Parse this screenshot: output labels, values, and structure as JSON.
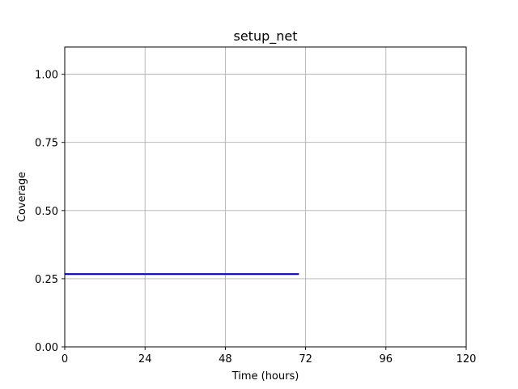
{
  "chart_data": {
    "type": "line",
    "title": "setup_net",
    "xlabel": "Time (hours)",
    "ylabel": "Coverage",
    "xlim": [
      0,
      120
    ],
    "ylim": [
      0,
      1.1
    ],
    "xticks": [
      0,
      24,
      48,
      72,
      96,
      120
    ],
    "xtick_labels": [
      "0",
      "24",
      "48",
      "72",
      "96",
      "120"
    ],
    "yticks": [
      0,
      0.25,
      0.5,
      0.75,
      1.0
    ],
    "ytick_labels": [
      "0.00",
      "0.25",
      "0.50",
      "0.75",
      "1.00"
    ],
    "grid": true,
    "series": [
      {
        "x": [
          0,
          70
        ],
        "y": [
          0.267,
          0.267
        ],
        "color": "#0000ff"
      }
    ]
  }
}
